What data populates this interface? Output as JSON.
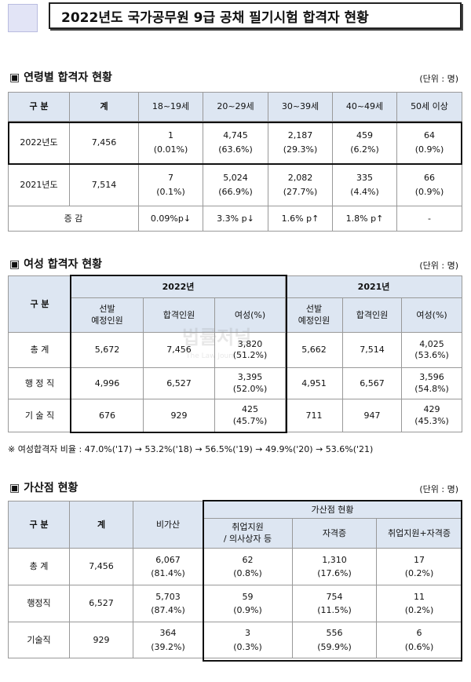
{
  "header": {
    "title": "2022년도 국가공무원 9급 공채 필기시험 합격자 현황"
  },
  "watermark": {
    "text": "법률저널",
    "subtext": "The Law Journal"
  },
  "age": {
    "heading": "▣ 연령별 합격자 현황",
    "unit": "(단위 : 명)",
    "headers": [
      "구 분",
      "계",
      "18~19세",
      "20~29세",
      "30~39세",
      "40~49세",
      "50세 이상"
    ],
    "rows": [
      {
        "label": "2022년도",
        "total": "7,456",
        "counts": [
          "1",
          "4,745",
          "2,187",
          "459",
          "64"
        ],
        "pcts": [
          "(0.01%)",
          "(63.6%)",
          "(29.3%)",
          "(6.2%)",
          "(0.9%)"
        ]
      },
      {
        "label": "2021년도",
        "total": "7,514",
        "counts": [
          "7",
          "5,024",
          "2,082",
          "335",
          "66"
        ],
        "pcts": [
          "(0.1%)",
          "(66.9%)",
          "(27.7%)",
          "(4.4%)",
          "(0.9%)"
        ]
      }
    ],
    "change_label": "증 감",
    "change": [
      "0.09%p↓",
      "3.3% p↓",
      "1.6% p↑",
      "1.8% p↑",
      "-"
    ]
  },
  "female": {
    "heading": "▣ 여성 합격자 현황",
    "unit": "(단위 : 명)",
    "label_header": "구 분",
    "years": [
      "2022년",
      "2021년"
    ],
    "sub_headers": {
      "planned_line1": "선발",
      "planned_line2": "예정인원",
      "passed": "합격인원",
      "female": "여성(%)"
    },
    "rows": [
      {
        "label": "총 계",
        "y2022": {
          "planned": "5,672",
          "passed": "7,456",
          "female": "3,820",
          "female_pct": "(51.2%)"
        },
        "y2021": {
          "planned": "5,662",
          "passed": "7,514",
          "female": "4,025",
          "female_pct": "(53.6%)"
        }
      },
      {
        "label": "행 정 직",
        "y2022": {
          "planned": "4,996",
          "passed": "6,527",
          "female": "3,395",
          "female_pct": "(52.0%)"
        },
        "y2021": {
          "planned": "4,951",
          "passed": "6,567",
          "female": "3,596",
          "female_pct": "(54.8%)"
        }
      },
      {
        "label": "기 술 직",
        "y2022": {
          "planned": "676",
          "passed": "929",
          "female": "425",
          "female_pct": "(45.7%)"
        },
        "y2021": {
          "planned": "711",
          "passed": "947",
          "female": "429",
          "female_pct": "(45.3%)"
        }
      }
    ],
    "note": "※ 여성합격자 비율 : 47.0%('17) → 53.2%('18) → 56.5%('19) → 49.9%('20) → 53.6%('21)"
  },
  "bonus": {
    "heading": "▣ 가산점 현황",
    "unit": "(단위 : 명)",
    "headers": {
      "label": "구 분",
      "total": "계",
      "none": "비가산",
      "group": "가산점 현황",
      "employment_line1": "취업지원",
      "employment_line2": "/ 의사상자 등",
      "license": "자격증",
      "both": "취업지원+자격증"
    },
    "rows": [
      {
        "label": "총 계",
        "total": "7,456",
        "values": [
          "6,067",
          "62",
          "1,310",
          "17"
        ],
        "pcts": [
          "(81.4%)",
          "(0.8%)",
          "(17.6%)",
          "(0.2%)"
        ]
      },
      {
        "label": "행정직",
        "total": "6,527",
        "values": [
          "5,703",
          "59",
          "754",
          "11"
        ],
        "pcts": [
          "(87.4%)",
          "(0.9%)",
          "(11.5%)",
          "(0.2%)"
        ]
      },
      {
        "label": "기술직",
        "total": "929",
        "values": [
          "364",
          "3",
          "556",
          "6"
        ],
        "pcts": [
          "(39.2%)",
          "(0.3%)",
          "(59.9%)",
          "(0.6%)"
        ]
      }
    ]
  }
}
